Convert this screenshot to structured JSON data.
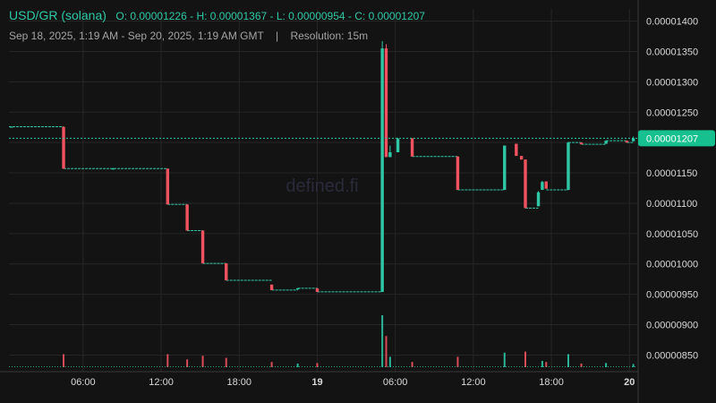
{
  "header": {
    "symbol": "USD/GR (solana)",
    "ohlc": "O: 0.00001226 - H: 0.00001367 - L: 0.00000954 - C: 0.00001207",
    "range": "Sep 18, 2025, 1:19 AM - Sep 20, 2025, 1:19 AM GMT",
    "separator": "|",
    "resolution": "Resolution: 15m"
  },
  "watermark": "defined.fi",
  "colors": {
    "up": "#2fc8a6",
    "down": "#f0525f",
    "grid": "#262626",
    "axis_text": "#d9d9d9"
  },
  "chart_data": {
    "type": "candlestick",
    "x_ticks": [
      "06:00",
      "12:00",
      "18:00",
      "19",
      "06:00",
      "12:00",
      "18:00",
      "20"
    ],
    "x_ticks_bold": [
      false,
      false,
      false,
      true,
      false,
      false,
      false,
      true
    ],
    "x_tick_hours": [
      6,
      12,
      18,
      24,
      30,
      36,
      42,
      48
    ],
    "y_ticks": [
      "0.00001400",
      "0.00001350",
      "0.00001300",
      "0.00001250",
      "0.00001200",
      "0.00001150",
      "0.00001100",
      "0.00001050",
      "0.00001000",
      "0.00000950",
      "0.00000900",
      "0.00000850"
    ],
    "ylim": [
      8.3e-06,
      1.42e-05
    ],
    "xlim_hours": [
      0.3,
      48.6
    ],
    "last_price_label": "0.00001207",
    "last_price": 1.207e-05,
    "candles": [
      {
        "t": 0.5,
        "o": 1.226e-05,
        "h": 1.226e-05,
        "l": 1.226e-05,
        "c": 1.226e-05
      },
      {
        "t": 4.5,
        "o": 1.226e-05,
        "h": 1.226e-05,
        "l": 1.157e-05,
        "c": 1.157e-05
      },
      {
        "t": 8.3,
        "o": 1.157e-05,
        "h": 1.158e-05,
        "l": 1.156e-05,
        "c": 1.157e-05
      },
      {
        "t": 12.5,
        "o": 1.157e-05,
        "h": 1.157e-05,
        "l": 1.098e-05,
        "c": 1.098e-05
      },
      {
        "t": 14.0,
        "o": 1.098e-05,
        "h": 1.098e-05,
        "l": 1.055e-05,
        "c": 1.055e-05
      },
      {
        "t": 15.2,
        "o": 1.055e-05,
        "h": 1.055e-05,
        "l": 1.001e-05,
        "c": 1.001e-05
      },
      {
        "t": 17.0,
        "o": 1.001e-05,
        "h": 1.001e-05,
        "l": 9.73e-06,
        "c": 9.73e-06
      },
      {
        "t": 20.5,
        "o": 9.66e-06,
        "h": 9.66e-06,
        "l": 9.57e-06,
        "c": 9.57e-06
      },
      {
        "t": 22.5,
        "o": 9.58e-06,
        "h": 9.6e-06,
        "l": 9.58e-06,
        "c": 9.6e-06
      },
      {
        "t": 24.0,
        "o": 9.6e-06,
        "h": 9.6e-06,
        "l": 9.54e-06,
        "c": 9.54e-06
      },
      {
        "t": 29.0,
        "o": 9.54e-06,
        "h": 1.367e-05,
        "l": 9.54e-06,
        "c": 1.355e-05
      },
      {
        "t": 29.3,
        "o": 1.355e-05,
        "h": 1.362e-05,
        "l": 1.176e-05,
        "c": 1.176e-05
      },
      {
        "t": 29.6,
        "o": 1.176e-05,
        "h": 1.195e-05,
        "l": 1.176e-05,
        "c": 1.184e-05
      },
      {
        "t": 30.2,
        "o": 1.184e-05,
        "h": 1.208e-05,
        "l": 1.184e-05,
        "c": 1.206e-05
      },
      {
        "t": 31.3,
        "o": 1.207e-05,
        "h": 1.207e-05,
        "l": 1.177e-05,
        "c": 1.177e-05
      },
      {
        "t": 34.8,
        "o": 1.177e-05,
        "h": 1.177e-05,
        "l": 1.122e-05,
        "c": 1.122e-05
      },
      {
        "t": 38.4,
        "o": 1.122e-05,
        "h": 1.195e-05,
        "l": 1.122e-05,
        "c": 1.195e-05
      },
      {
        "t": 39.3,
        "o": 1.198e-05,
        "h": 1.198e-05,
        "l": 1.178e-05,
        "c": 1.178e-05
      },
      {
        "t": 39.7,
        "o": 1.178e-05,
        "h": 1.178e-05,
        "l": 1.172e-05,
        "c": 1.172e-05
      },
      {
        "t": 40.0,
        "o": 1.172e-05,
        "h": 1.172e-05,
        "l": 1.092e-05,
        "c": 1.092e-05
      },
      {
        "t": 41.0,
        "o": 1.095e-05,
        "h": 1.12e-05,
        "l": 1.095e-05,
        "c": 1.118e-05
      },
      {
        "t": 41.3,
        "o": 1.122e-05,
        "h": 1.137e-05,
        "l": 1.122e-05,
        "c": 1.135e-05
      },
      {
        "t": 41.6,
        "o": 1.136e-05,
        "h": 1.136e-05,
        "l": 1.124e-05,
        "c": 1.124e-05
      },
      {
        "t": 43.3,
        "o": 1.122e-05,
        "h": 1.201e-05,
        "l": 1.122e-05,
        "c": 1.2e-05
      },
      {
        "t": 44.3,
        "o": 1.2e-05,
        "h": 1.2e-05,
        "l": 1.197e-05,
        "c": 1.197e-05
      },
      {
        "t": 46.2,
        "o": 1.198e-05,
        "h": 1.203e-05,
        "l": 1.198e-05,
        "c": 1.203e-05
      },
      {
        "t": 47.8,
        "o": 1.203e-05,
        "h": 1.203e-05,
        "l": 1.2e-05,
        "c": 1.2e-05
      },
      {
        "t": 48.3,
        "o": 1.202e-05,
        "h": 1.21e-05,
        "l": 1.202e-05,
        "c": 1.207e-05
      }
    ],
    "flat_segments": [
      {
        "t0": 0.3,
        "t1": 4.5,
        "p": 1.226e-05
      },
      {
        "t0": 4.5,
        "t1": 12.5,
        "p": 1.157e-05
      },
      {
        "t0": 12.5,
        "t1": 14.0,
        "p": 1.098e-05
      },
      {
        "t0": 14.0,
        "t1": 15.2,
        "p": 1.055e-05
      },
      {
        "t0": 15.2,
        "t1": 17.0,
        "p": 1.001e-05
      },
      {
        "t0": 17.0,
        "t1": 20.5,
        "p": 9.73e-06
      },
      {
        "t0": 20.5,
        "t1": 22.5,
        "p": 9.57e-06
      },
      {
        "t0": 22.5,
        "t1": 24.0,
        "p": 9.6e-06
      },
      {
        "t0": 24.0,
        "t1": 29.0,
        "p": 9.54e-06
      },
      {
        "t0": 31.3,
        "t1": 34.8,
        "p": 1.177e-05
      },
      {
        "t0": 34.8,
        "t1": 38.4,
        "p": 1.122e-05
      },
      {
        "t0": 40.0,
        "t1": 41.0,
        "p": 1.092e-05
      },
      {
        "t0": 41.6,
        "t1": 43.3,
        "p": 1.122e-05
      },
      {
        "t0": 43.3,
        "t1": 44.3,
        "p": 1.2e-05
      },
      {
        "t0": 44.3,
        "t1": 46.2,
        "p": 1.197e-05
      },
      {
        "t0": 46.2,
        "t1": 47.8,
        "p": 1.203e-05
      },
      {
        "t0": 47.8,
        "t1": 48.3,
        "p": 1.2e-05
      }
    ],
    "volume": [
      {
        "t": 4.5,
        "v": 0.25,
        "up": false
      },
      {
        "t": 12.5,
        "v": 0.25,
        "up": false
      },
      {
        "t": 14.0,
        "v": 0.15,
        "up": false
      },
      {
        "t": 15.2,
        "v": 0.22,
        "up": false
      },
      {
        "t": 17.0,
        "v": 0.18,
        "up": false
      },
      {
        "t": 20.5,
        "v": 0.1,
        "up": false
      },
      {
        "t": 22.5,
        "v": 0.07,
        "up": true
      },
      {
        "t": 24.0,
        "v": 0.08,
        "up": false
      },
      {
        "t": 29.0,
        "v": 1.0,
        "up": true
      },
      {
        "t": 29.3,
        "v": 0.6,
        "up": false
      },
      {
        "t": 29.6,
        "v": 0.2,
        "up": true
      },
      {
        "t": 31.3,
        "v": 0.1,
        "up": false
      },
      {
        "t": 34.8,
        "v": 0.2,
        "up": false
      },
      {
        "t": 38.4,
        "v": 0.28,
        "up": true
      },
      {
        "t": 40.0,
        "v": 0.3,
        "up": false
      },
      {
        "t": 41.3,
        "v": 0.12,
        "up": true
      },
      {
        "t": 41.6,
        "v": 0.1,
        "up": false
      },
      {
        "t": 43.3,
        "v": 0.25,
        "up": true
      },
      {
        "t": 44.3,
        "v": 0.07,
        "up": false
      },
      {
        "t": 46.2,
        "v": 0.08,
        "up": true
      },
      {
        "t": 48.3,
        "v": 0.06,
        "up": true
      }
    ]
  }
}
